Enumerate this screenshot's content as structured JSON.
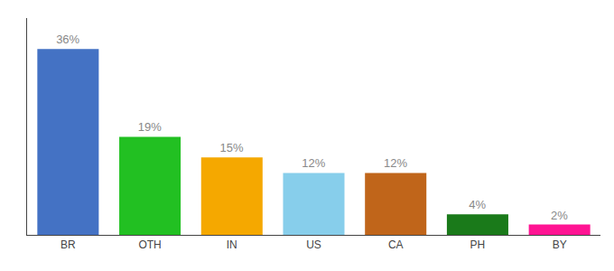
{
  "chart_data": {
    "type": "bar",
    "categories": [
      "BR",
      "OTH",
      "IN",
      "US",
      "CA",
      "PH",
      "BY"
    ],
    "values": [
      36,
      19,
      15,
      12,
      12,
      4,
      2
    ],
    "value_labels": [
      "36%",
      "19%",
      "15%",
      "12%",
      "12%",
      "4%",
      "2%"
    ],
    "data_labels": true,
    "colors": [
      "#4472c4",
      "#22c022",
      "#f5a800",
      "#87ceeb",
      "#c0651a",
      "#1a7a1a",
      "#ff1493"
    ],
    "ylim": [
      0,
      42
    ],
    "yticks": [],
    "tick_labels": "x",
    "grid": false
  }
}
